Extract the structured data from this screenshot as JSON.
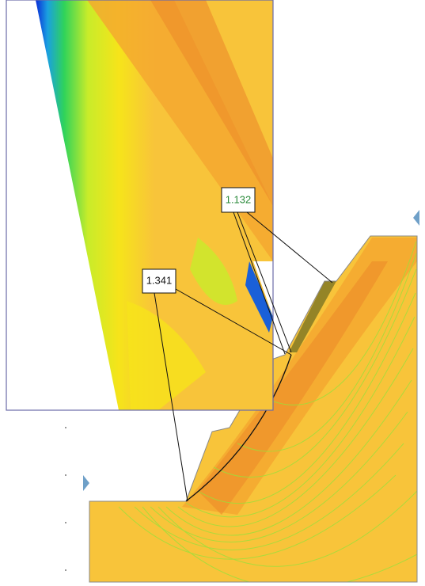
{
  "labels": [
    {
      "text": "1.132"
    },
    {
      "text": "1.341"
    }
  ]
}
